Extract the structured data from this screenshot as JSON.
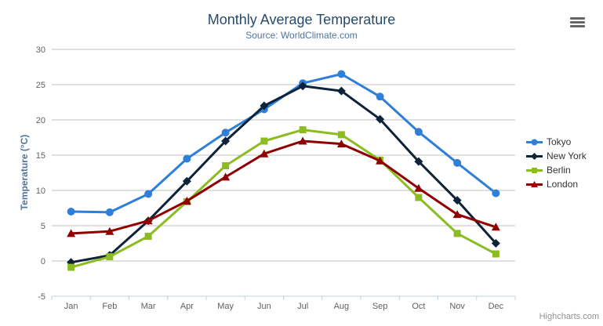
{
  "ui": {
    "credits_text": "Highcharts.com"
  },
  "chart_data": {
    "type": "line",
    "title": "Monthly Average Temperature",
    "subtitle": "Source: WorldClimate.com",
    "categories": [
      "Jan",
      "Feb",
      "Mar",
      "Apr",
      "May",
      "Jun",
      "Jul",
      "Aug",
      "Sep",
      "Oct",
      "Nov",
      "Dec"
    ],
    "series": [
      {
        "name": "Tokyo",
        "color": "#2f7ed8",
        "marker": "circle",
        "values": [
          7.0,
          6.9,
          9.5,
          14.5,
          18.2,
          21.5,
          25.2,
          26.5,
          23.3,
          18.3,
          13.9,
          9.6
        ]
      },
      {
        "name": "New York",
        "color": "#0d233a",
        "marker": "diamond",
        "values": [
          -0.2,
          0.8,
          5.7,
          11.3,
          17.0,
          22.0,
          24.8,
          24.1,
          20.1,
          14.1,
          8.6,
          2.5
        ]
      },
      {
        "name": "Berlin",
        "color": "#8bbc21",
        "marker": "square",
        "values": [
          -0.9,
          0.6,
          3.5,
          8.4,
          13.5,
          17.0,
          18.6,
          17.9,
          14.3,
          9.0,
          3.9,
          1.0
        ]
      },
      {
        "name": "London",
        "color": "#910000",
        "marker": "triangle",
        "values": [
          3.9,
          4.2,
          5.7,
          8.5,
          11.9,
          15.2,
          17.0,
          16.6,
          14.2,
          10.3,
          6.6,
          4.8
        ]
      }
    ],
    "xlabel": "",
    "ylabel": "Temperature (°C)",
    "ylim": [
      -5,
      30
    ],
    "yticks": [
      -5,
      0,
      5,
      10,
      15,
      20,
      25,
      30
    ],
    "grid": true,
    "legend_position": "right",
    "colors": {
      "title": "#274b6d",
      "subtitle": "#4d759e",
      "axis_labels": "#606060",
      "gridline": "#c0c0c0",
      "axis_line": "#c0d0e0",
      "legend_text": "#333333",
      "credits": "#909090"
    }
  }
}
